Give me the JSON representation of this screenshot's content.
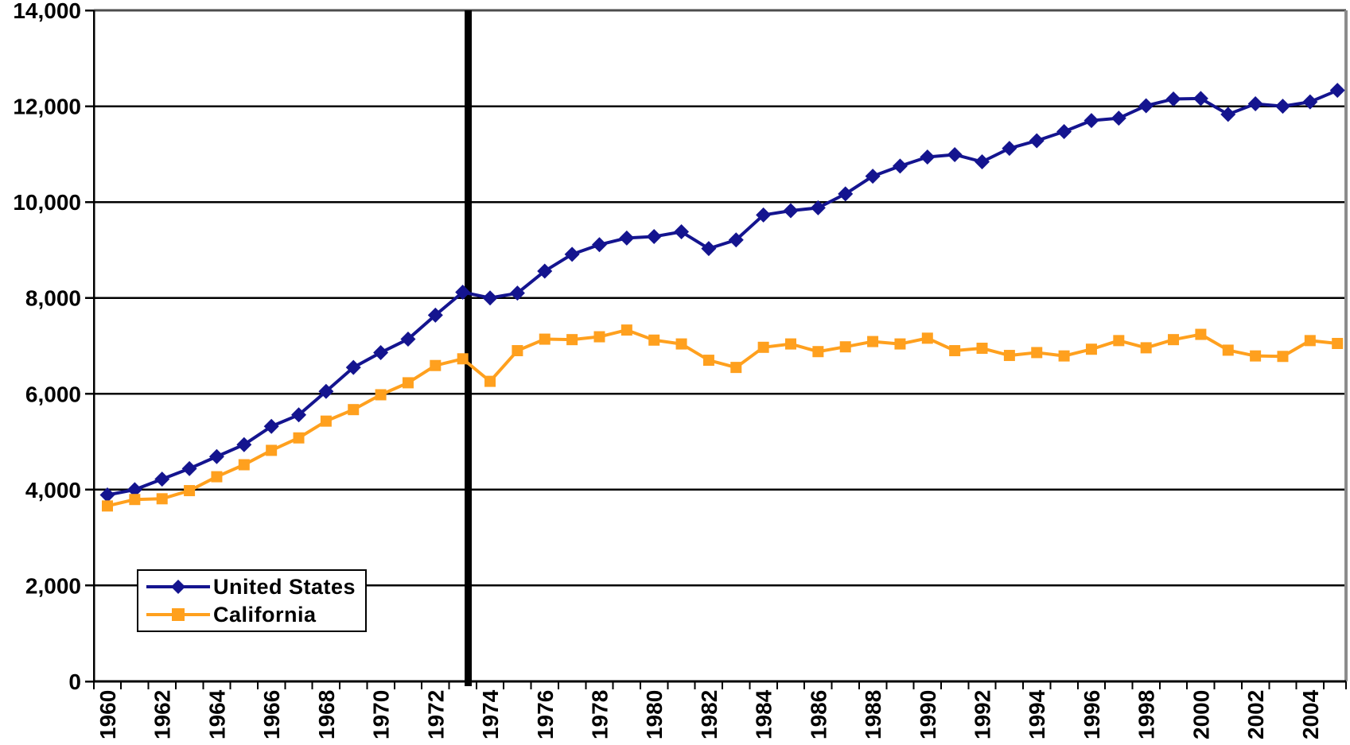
{
  "chart_data": {
    "type": "line",
    "title": "",
    "xlabel": "",
    "ylabel": "",
    "x_years": [
      1960,
      1961,
      1962,
      1963,
      1964,
      1965,
      1966,
      1967,
      1968,
      1969,
      1970,
      1971,
      1972,
      1973,
      1974,
      1975,
      1976,
      1977,
      1978,
      1979,
      1980,
      1981,
      1982,
      1983,
      1984,
      1985,
      1986,
      1987,
      1988,
      1989,
      1990,
      1991,
      1992,
      1993,
      1994,
      1995,
      1996,
      1997,
      1998,
      1999,
      2000,
      2001,
      2002,
      2003,
      2004,
      2005
    ],
    "series": [
      {
        "name": "United States",
        "marker": "diamond",
        "color": "#14148F",
        "values": [
          3890,
          4000,
          4220,
          4440,
          4690,
          4940,
          5320,
          5560,
          6050,
          6550,
          6860,
          7140,
          7640,
          8120,
          8000,
          8100,
          8560,
          8910,
          9110,
          9250,
          9280,
          9380,
          9030,
          9210,
          9730,
          9820,
          9880,
          10170,
          10540,
          10750,
          10940,
          10990,
          10840,
          11120,
          11280,
          11470,
          11700,
          11750,
          12010,
          12150,
          12160,
          11830,
          12050,
          12000,
          12090,
          12330
        ]
      },
      {
        "name": "California",
        "marker": "square",
        "color": "#FFA01E",
        "values": [
          3660,
          3795,
          3810,
          3980,
          4270,
          4520,
          4820,
          5080,
          5430,
          5670,
          5980,
          6230,
          6590,
          6730,
          6260,
          6900,
          7140,
          7130,
          7190,
          7330,
          7120,
          7040,
          6700,
          6550,
          6970,
          7040,
          6880,
          6980,
          7090,
          7040,
          7160,
          6900,
          6950,
          6800,
          6860,
          6790,
          6930,
          7110,
          6960,
          7130,
          7240,
          6910,
          6790,
          6780,
          7110,
          7050
        ]
      }
    ],
    "ylim": [
      0,
      14000
    ],
    "ytick_interval": 2000,
    "ytick_labels": [
      "0",
      "2,000",
      "4,000",
      "6,000",
      "8,000",
      "10,000",
      "12,000",
      "14,000"
    ],
    "xtick_labels": [
      "1960",
      "1962",
      "1964",
      "1966",
      "1968",
      "1970",
      "1972",
      "1974",
      "1976",
      "1978",
      "1980",
      "1982",
      "1984",
      "1986",
      "1988",
      "1990",
      "1992",
      "1994",
      "1996",
      "1998",
      "2000",
      "2002",
      "2004"
    ],
    "annotations": {
      "vertical_line_year": 1973.2,
      "vertical_line_color": "#000000"
    },
    "grid": true,
    "legend": {
      "position": "inside-bottom-left",
      "items": [
        "United States",
        "California"
      ]
    }
  }
}
